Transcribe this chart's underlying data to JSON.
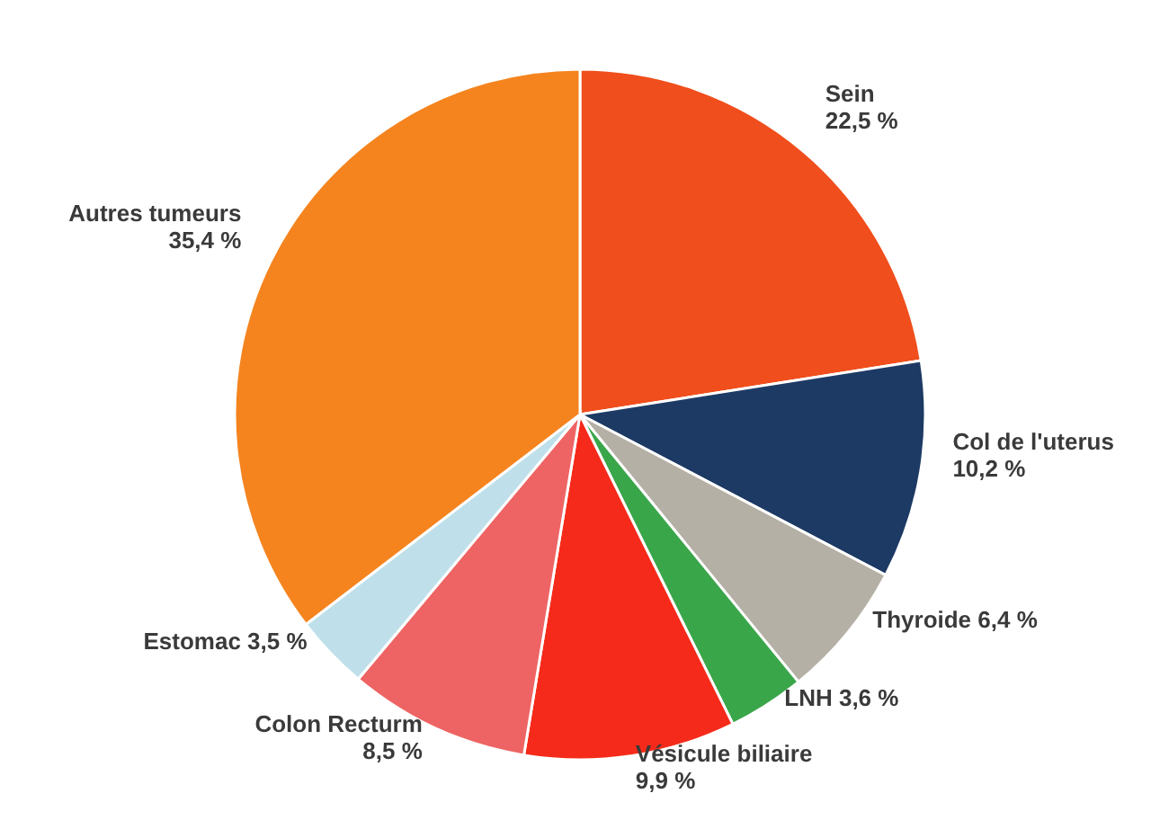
{
  "chart_data": {
    "type": "pie",
    "categories": [
      "Sein",
      "Col de l'uterus",
      "Thyroide",
      "LNH",
      "Vésicule biliaire",
      "Colon Recturm",
      "Estomac",
      "Autres tumeurs"
    ],
    "values": [
      22.5,
      10.2,
      6.4,
      3.6,
      9.9,
      8.5,
      3.5,
      35.4
    ],
    "value_labels": [
      "22,5 %",
      "10,2 %",
      "6,4 %",
      "3,6 %",
      "9,9 %",
      "8,5 %",
      "3,5 %",
      "35,4 %"
    ],
    "colors": [
      "#f04e1c",
      "#1d3a64",
      "#b5b0a5",
      "#3aa64a",
      "#f52a1a",
      "#ee6464",
      "#bfe0ea",
      "#f5841f"
    ]
  }
}
